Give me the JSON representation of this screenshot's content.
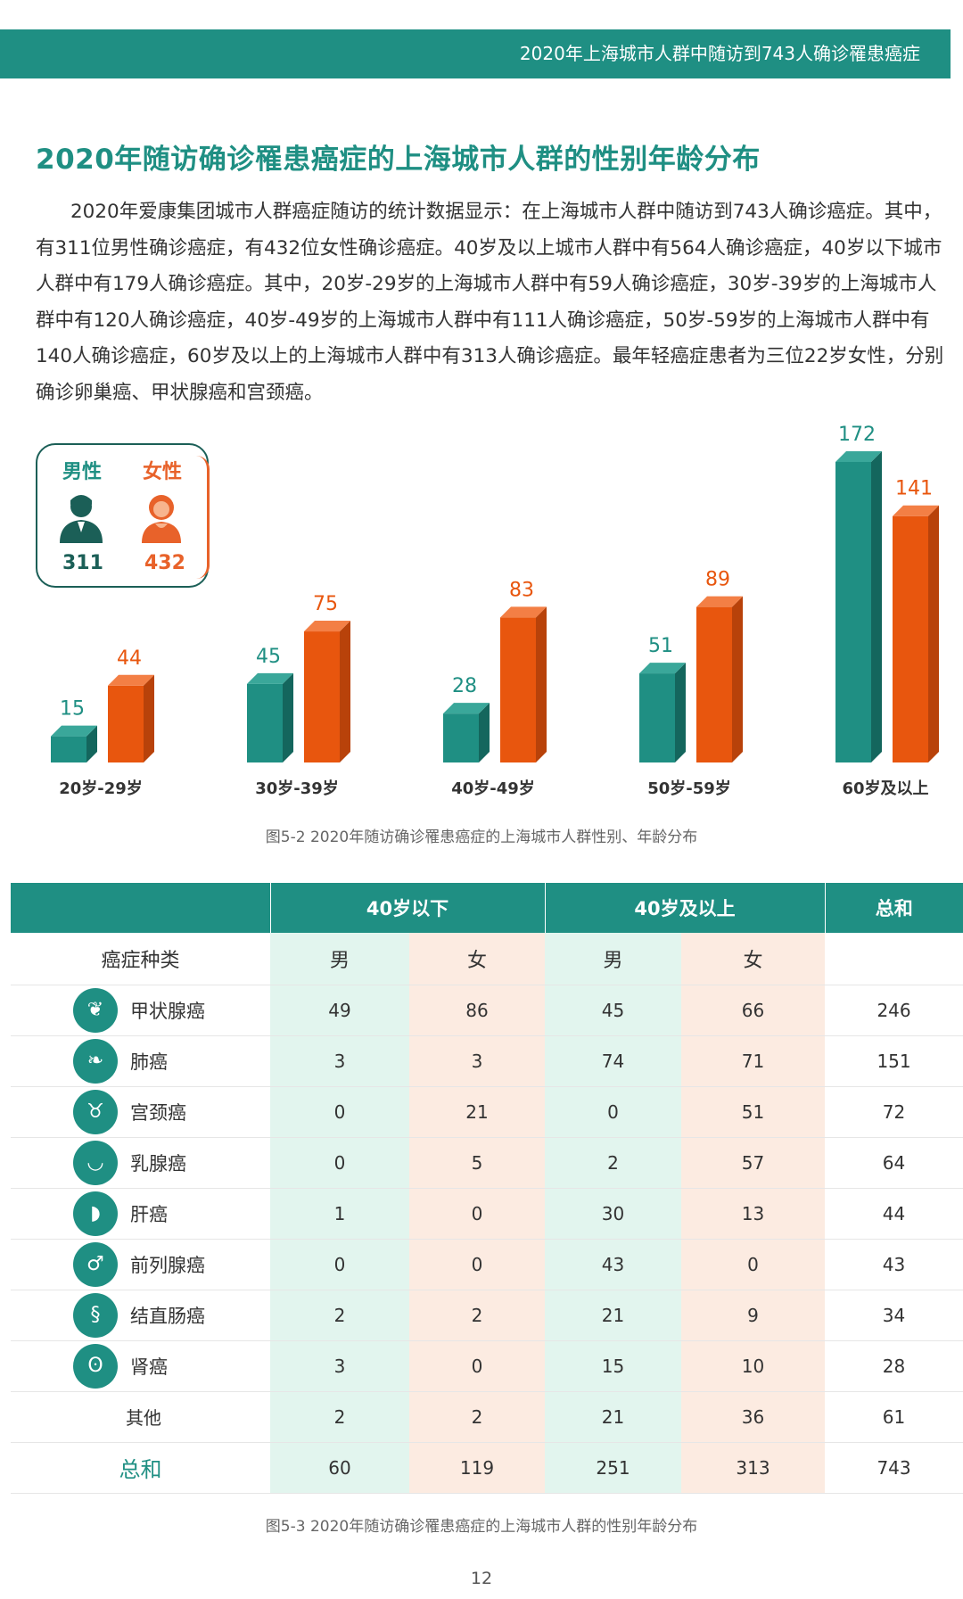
{
  "header": {
    "title": "2020年上海城市人群中随访到743人确诊罹患癌症"
  },
  "section_title": "2020年随访确诊罹患癌症的上海城市人群的性别年龄分布",
  "intro_text": "2020年爱康集团城市人群癌症随访的统计数据显示：在上海城市人群中随访到743人确诊癌症。其中，有311位男性确诊癌症，有432位女性确诊癌症。40岁及以上城市人群中有564人确诊癌症，40岁以下城市人群中有179人确诊癌症。其中，20岁-29岁的上海城市人群中有59人确诊癌症，30岁-39岁的上海城市人群中有120人确诊癌症，40岁-49岁的上海城市人群中有111人确诊癌症，50岁-59岁的上海城市人群中有140人确诊癌症，60岁及以上的上海城市人群中有313人确诊癌症。最年轻癌症患者为三位22岁女性，分别确诊卵巢癌、甲状腺癌和宫颈癌。",
  "gender_box": {
    "male_label": "男性",
    "female_label": "女性",
    "male_value": "311",
    "female_value": "432",
    "male_icon": "male-person-icon",
    "female_icon": "female-person-icon"
  },
  "colors": {
    "male": "#1f8f83",
    "female": "#e8560e",
    "header": "#1f8f83"
  },
  "chart_data": {
    "type": "bar",
    "categories": [
      "20岁-29岁",
      "30岁-39岁",
      "40岁-49岁",
      "50岁-59岁",
      "60岁及以上"
    ],
    "series": [
      {
        "name": "男性",
        "values": [
          15,
          45,
          28,
          51,
          172
        ]
      },
      {
        "name": "女性",
        "values": [
          44,
          75,
          83,
          89,
          141
        ]
      }
    ],
    "title": "",
    "xlabel": "",
    "ylabel": "",
    "ylim": [
      0,
      172
    ],
    "grid": false,
    "legend": "top-left"
  },
  "chart_caption": "图5-2 2020年随访确诊罹患癌症的上海城市人群性别、年龄分布",
  "table": {
    "header_groups": [
      "40岁以下",
      "40岁及以上",
      "总和"
    ],
    "subheader": {
      "category_label": "癌症种类",
      "male": "男",
      "female": "女"
    },
    "rows": [
      {
        "name": "甲状腺癌",
        "icon": "thyroid-icon",
        "glyph": "❦",
        "u40_m": "49",
        "u40_f": "86",
        "o40_m": "45",
        "o40_f": "66",
        "total": "246"
      },
      {
        "name": "肺癌",
        "icon": "lungs-icon",
        "glyph": "❧",
        "u40_m": "3",
        "u40_f": "3",
        "o40_m": "74",
        "o40_f": "71",
        "total": "151"
      },
      {
        "name": "宫颈癌",
        "icon": "uterus-icon",
        "glyph": "♉",
        "u40_m": "0",
        "u40_f": "21",
        "o40_m": "0",
        "o40_f": "51",
        "total": "72"
      },
      {
        "name": "乳腺癌",
        "icon": "breast-icon",
        "glyph": "◡",
        "u40_m": "0",
        "u40_f": "5",
        "o40_m": "2",
        "o40_f": "57",
        "total": "64"
      },
      {
        "name": "肝癌",
        "icon": "liver-icon",
        "glyph": "◗",
        "u40_m": "1",
        "u40_f": "0",
        "o40_m": "30",
        "o40_f": "13",
        "total": "44"
      },
      {
        "name": "前列腺癌",
        "icon": "prostate-icon",
        "glyph": "♂",
        "u40_m": "0",
        "u40_f": "0",
        "o40_m": "43",
        "o40_f": "0",
        "total": "43"
      },
      {
        "name": "结直肠癌",
        "icon": "intestine-icon",
        "glyph": "§",
        "u40_m": "2",
        "u40_f": "2",
        "o40_m": "21",
        "o40_f": "9",
        "total": "34"
      },
      {
        "name": "肾癌",
        "icon": "kidney-icon",
        "glyph": "ʘ",
        "u40_m": "3",
        "u40_f": "0",
        "o40_m": "15",
        "o40_f": "10",
        "total": "28"
      }
    ],
    "other_row": {
      "name": "其他",
      "u40_m": "2",
      "u40_f": "2",
      "o40_m": "21",
      "o40_f": "36",
      "total": "61"
    },
    "total_row": {
      "name": "总和",
      "u40_m": "60",
      "u40_f": "119",
      "o40_m": "251",
      "o40_f": "313",
      "total": "743"
    }
  },
  "table_caption": "图5-3 2020年随访确诊罹患癌症的上海城市人群的性别年龄分布",
  "page_number": "12"
}
